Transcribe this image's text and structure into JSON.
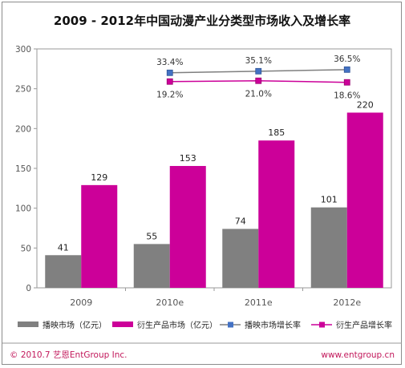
{
  "chart_data": {
    "type": "bar",
    "title": "2009 - 2012年中国动漫产业分类型市场收入及增长率",
    "categories": [
      "2009",
      "2010e",
      "2011e",
      "2012e"
    ],
    "ylim": [
      0,
      300
    ],
    "yticks": [
      "0",
      "50",
      "100",
      "150",
      "200",
      "250",
      "300"
    ],
    "grid": false,
    "series": [
      {
        "name": "播映市场（亿元）",
        "color": "#808080",
        "values": [
          41,
          55,
          74,
          101
        ]
      },
      {
        "name": "衍生产品市场（亿元）",
        "color": "#cc0099",
        "values": [
          129,
          153,
          185,
          220
        ]
      }
    ],
    "lines": [
      {
        "name": "播映市场增长率",
        "color": "#4472c4",
        "labels": [
          "33.4%",
          "35.1%",
          "36.5%"
        ],
        "plot_values": [
          270,
          272,
          274
        ]
      },
      {
        "name": "衍生产品增长率",
        "color": "#cc0099",
        "labels": [
          "19.2%",
          "21.0%",
          "18.6%"
        ],
        "plot_values": [
          259,
          260,
          258
        ]
      }
    ],
    "legend_position": "bottom"
  },
  "footer": {
    "copyright": "© 2010.7 艺恩EntGroup Inc.",
    "website": "www.entgroup.cn"
  }
}
